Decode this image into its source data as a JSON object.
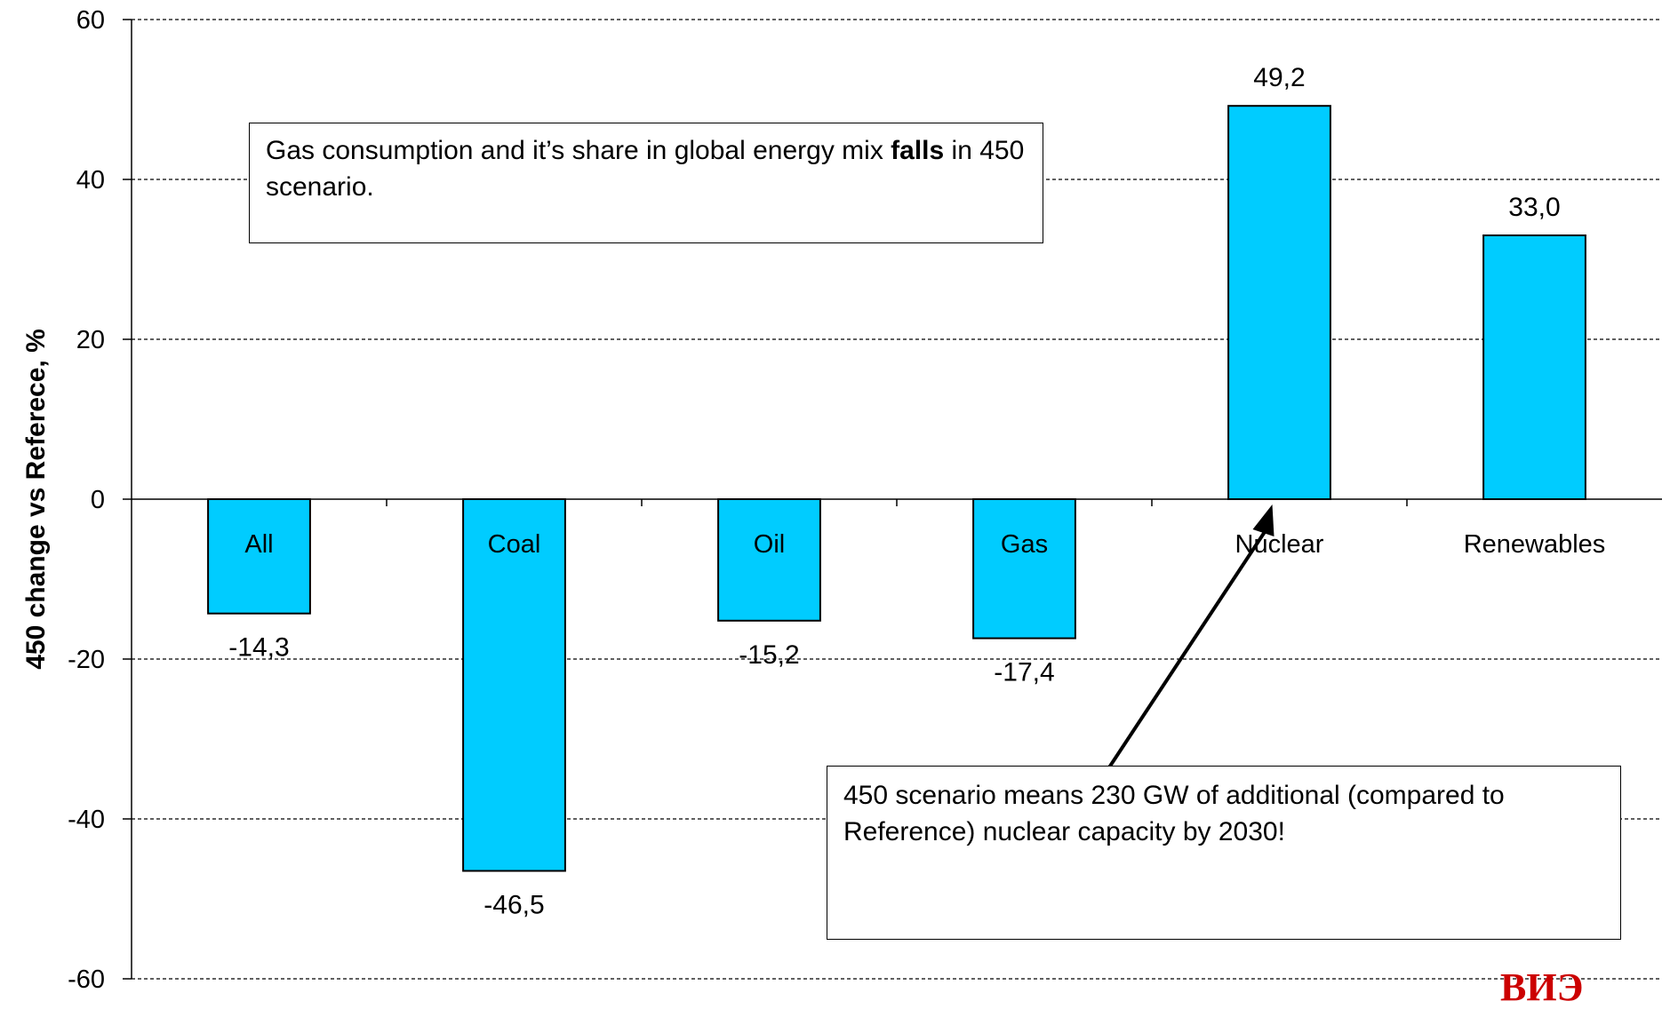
{
  "chart_data": {
    "type": "bar",
    "categories": [
      "All",
      "Coal",
      "Oil",
      "Gas",
      "Nuclear",
      "Renewables"
    ],
    "values": [
      -14.3,
      -46.5,
      -15.2,
      -17.4,
      49.2,
      33.0
    ],
    "value_labels": [
      "-14,3",
      "-46,5",
      "-15,2",
      "-17,4",
      "49,2",
      "33,0"
    ],
    "title": "",
    "xlabel": "",
    "ylabel": "450 change vs Referece, %",
    "ylim": [
      -60,
      60
    ],
    "yticks": [
      60,
      40,
      20,
      0,
      -20,
      -40,
      -60
    ],
    "ytick_labels": [
      "60",
      "40",
      "20",
      "0",
      "-20",
      "-40",
      "-60"
    ],
    "grid": true,
    "grid_style": "dashed",
    "legend": "none",
    "bar_color": "#00ccff",
    "bar_edge_color": "#000000"
  },
  "annotations": {
    "gas_note": {
      "text_before": "Gas consumption and it’s share in global energy mix ",
      "bold": "falls",
      "text_after": " in 450 scenario."
    },
    "nuclear_note": {
      "text": "450 scenario means 230 GW of additional (compared to Reference) nuclear capacity by 2030!"
    }
  },
  "watermark": {
    "text": "ВИЭ",
    "color": "#cc0000"
  }
}
